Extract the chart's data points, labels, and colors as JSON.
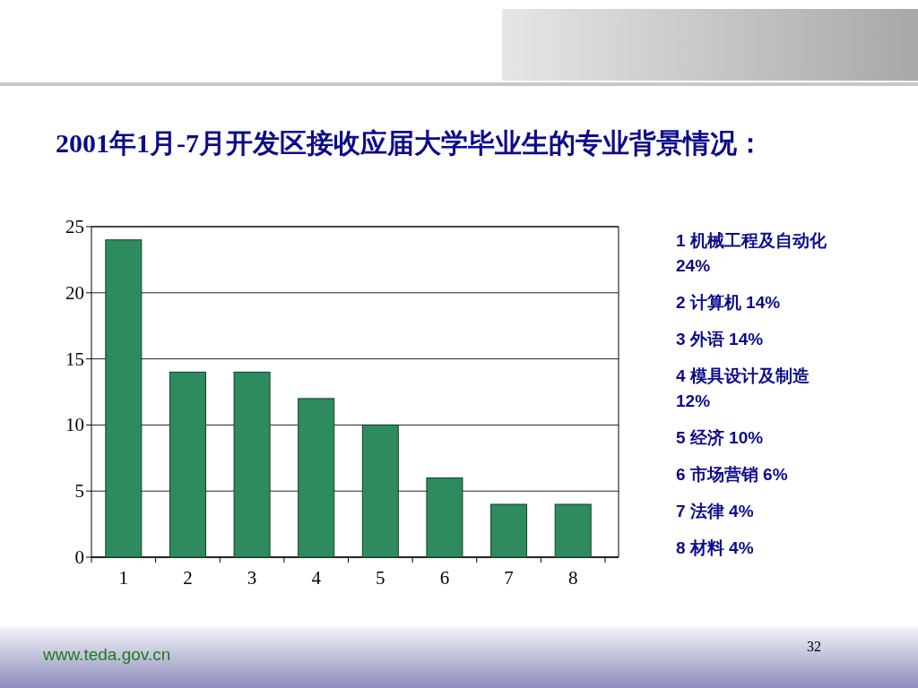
{
  "chart_data": {
    "type": "bar",
    "title": "2001年1月-7月开发区接收应届大学毕业生的专业背景情况：",
    "categories": [
      "1",
      "2",
      "3",
      "4",
      "5",
      "6",
      "7",
      "8"
    ],
    "values": [
      24,
      14,
      14,
      12,
      10,
      6,
      4,
      4
    ],
    "color": "#2e8b5e",
    "ylim": [
      0,
      25
    ],
    "yticks": [
      0,
      5,
      10,
      15,
      20,
      25
    ],
    "grid": "y",
    "annotations": [
      "1 机械工程及自动化 24%",
      "2 计算机 14%",
      "3 外语 14%",
      "4 模具设计及制造 12%",
      "5 经济 10%",
      "6 市场营销 6%",
      "7 法律 4%",
      "8 材料 4%",
      "www.teda.gov.cn",
      "32"
    ]
  }
}
